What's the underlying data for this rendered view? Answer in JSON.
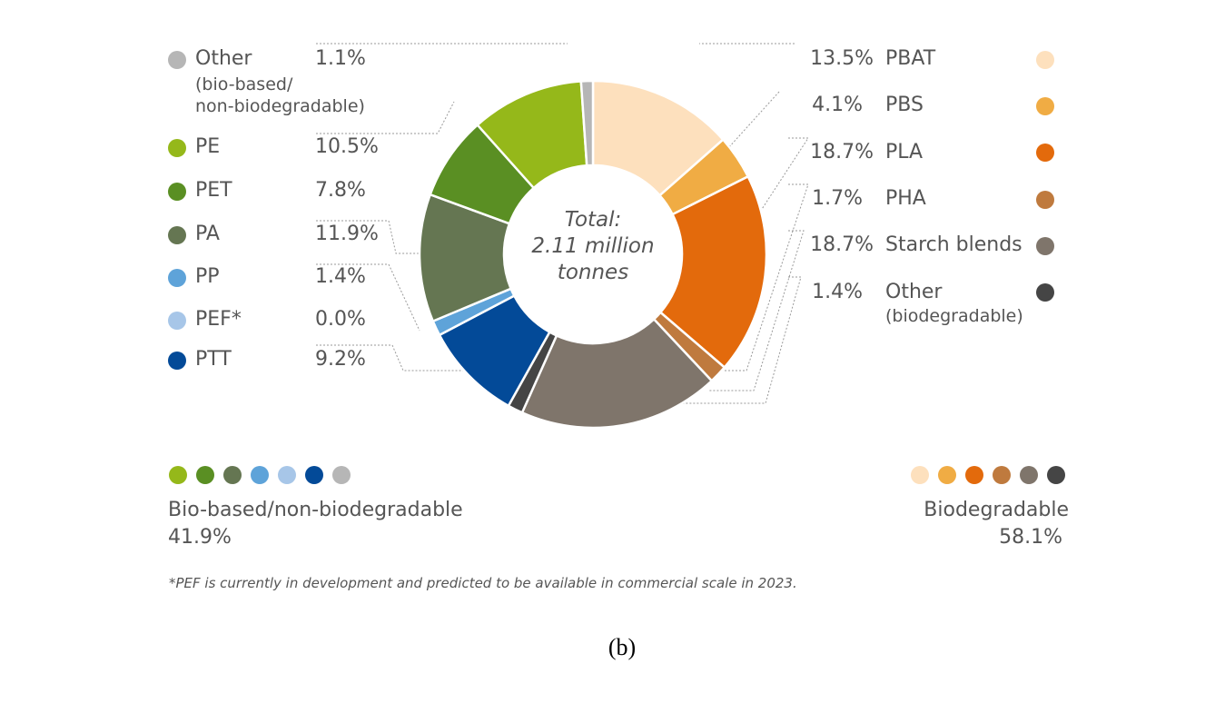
{
  "chart_data": {
    "type": "pie",
    "center_label": [
      "Total:",
      "2.11 million",
      "tonnes"
    ],
    "unit": "%",
    "slices": [
      {
        "label": "PBAT",
        "value": 13.5,
        "value_label": "13.5%",
        "color": "#fde0bd",
        "group": "biodegradable"
      },
      {
        "label": "PBS",
        "value": 4.1,
        "value_label": "4.1%",
        "color": "#f0ac44",
        "group": "biodegradable"
      },
      {
        "label": "PLA",
        "value": 18.7,
        "value_label": "18.7%",
        "color": "#e36a0c",
        "group": "biodegradable"
      },
      {
        "label": "PHA",
        "value": 1.7,
        "value_label": "1.7%",
        "color": "#bf7a3e",
        "group": "biodegradable"
      },
      {
        "label": "Starch blends",
        "value": 18.7,
        "value_label": "18.7%",
        "color": "#7f756b",
        "group": "biodegradable"
      },
      {
        "label": "Other",
        "sublabel": "(biodegradable)",
        "value": 1.4,
        "value_label": "1.4%",
        "color": "#454545",
        "group": "biodegradable"
      },
      {
        "label": "PTT",
        "value": 9.2,
        "value_label": "9.2%",
        "color": "#034a98",
        "group": "bio-based"
      },
      {
        "label": "PEF*",
        "value": 0.0,
        "value_label": "0.0%",
        "color": "#a7c6e8",
        "group": "bio-based"
      },
      {
        "label": "PP",
        "value": 1.4,
        "value_label": "1.4%",
        "color": "#5ea3d9",
        "group": "bio-based"
      },
      {
        "label": "PA",
        "value": 11.9,
        "value_label": "11.9%",
        "color": "#657652",
        "group": "bio-based"
      },
      {
        "label": "PET",
        "value": 7.8,
        "value_label": "7.8%",
        "color": "#5a8f23",
        "group": "bio-based"
      },
      {
        "label": "PE",
        "value": 10.5,
        "value_label": "10.5%",
        "color": "#95b81a",
        "group": "bio-based"
      },
      {
        "label": "Other",
        "sublabel": "(bio-based/ non-biodegradable)",
        "sublabel_lines": [
          "(bio-based/",
          "non-biodegradable)"
        ],
        "value": 1.1,
        "value_label": "1.1%",
        "color": "#b6b6b6",
        "group": "bio-based"
      }
    ],
    "groups": {
      "bio_based": {
        "title": "Bio-based/non-biodegradable",
        "value_label": "41.9%",
        "value": 41.9
      },
      "biodegradable": {
        "title": "Biodegradable",
        "value_label": "58.1%",
        "value": 58.1
      }
    },
    "left_legend_order": [
      "Other",
      "PE",
      "PET",
      "PA",
      "PP",
      "PEF*",
      "PTT"
    ],
    "right_legend_order": [
      "PBAT",
      "PBS",
      "PLA",
      "PHA",
      "Starch blends",
      "Other"
    ],
    "bio_based_swatches": [
      "#95b81a",
      "#5a8f23",
      "#657652",
      "#5ea3d9",
      "#a7c6e8",
      "#034a98",
      "#b6b6b6"
    ],
    "biodegradable_swatches": [
      "#fde0bd",
      "#f0ac44",
      "#e36a0c",
      "#bf7a3e",
      "#7f756b",
      "#454545"
    ]
  },
  "footnote": "*PEF is currently in development and predicted to be available in commercial scale in 2023.",
  "caption": "(b)"
}
